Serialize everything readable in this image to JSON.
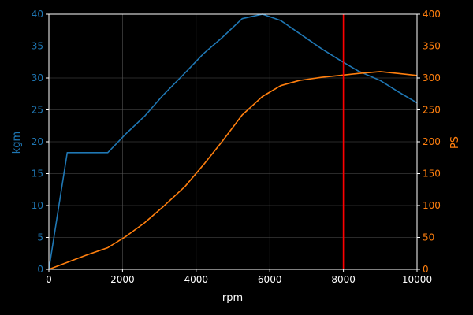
{
  "chart_data": {
    "type": "line",
    "xlabel": "rpm",
    "ylabel_left": "kgm",
    "ylabel_right": "PS",
    "xlim": [
      0,
      10000
    ],
    "ylim_left": [
      0,
      40
    ],
    "ylim_right": [
      0,
      400
    ],
    "x_ticks": [
      "0",
      "2000",
      "4000",
      "6000",
      "8000",
      "10000"
    ],
    "y_left_ticks": [
      "0",
      "5",
      "10",
      "15",
      "20",
      "25",
      "30",
      "35",
      "40"
    ],
    "y_right_ticks": [
      "0",
      "50",
      "100",
      "150",
      "200",
      "250",
      "300",
      "350",
      "400"
    ],
    "grid": true,
    "redline_x": 8000,
    "colors": {
      "background": "#000000",
      "text": "#ffffff",
      "torque": "#1f77b4",
      "power": "#ff7f0e",
      "redline": "#ff0000",
      "grid": "#555555"
    },
    "series": [
      {
        "axis": "left",
        "color": "#1f77b4",
        "x": [
          0,
          500,
          1000,
          1600,
          2100,
          2600,
          3100,
          3700,
          4200,
          4700,
          5250,
          5800,
          6300,
          6800,
          7400,
          7900,
          8400,
          9000,
          9500,
          10000
        ],
        "y": [
          0,
          18.3,
          18.3,
          18.3,
          21.3,
          24.0,
          27.3,
          30.8,
          33.8,
          36.3,
          39.3,
          40.0,
          39.0,
          37.0,
          34.6,
          32.8,
          31.1,
          29.6,
          27.8,
          26.1
        ]
      },
      {
        "axis": "right",
        "color": "#ff7f0e",
        "x": [
          0,
          500,
          1000,
          1600,
          2100,
          2600,
          3100,
          3700,
          4200,
          4700,
          5250,
          5800,
          6300,
          6800,
          7400,
          7900,
          8400,
          9000,
          9500,
          10000
        ],
        "y": [
          0,
          11,
          22,
          34,
          52,
          73,
          98,
          130,
          164,
          200,
          242,
          271,
          288,
          296,
          301,
          304,
          307,
          310,
          307,
          304
        ]
      }
    ]
  }
}
